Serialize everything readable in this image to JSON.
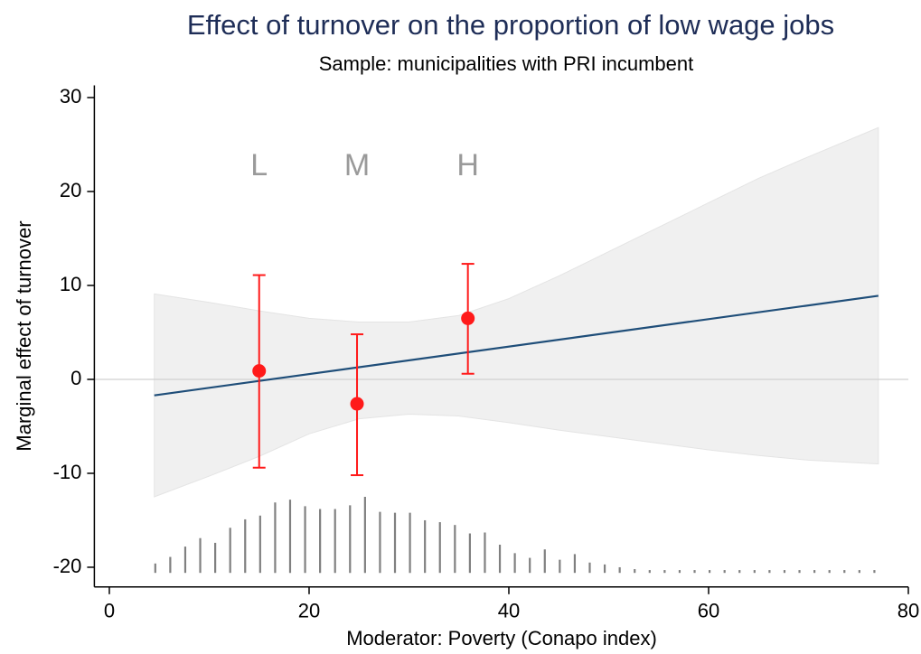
{
  "chart_data": {
    "type": "marginal-effect",
    "title": "Effect of turnover on the proportion of low wage jobs",
    "subtitle": "Sample: municipalities with PRI incumbent",
    "x_label": "Moderator: Poverty (Conapo index)",
    "y_label": "Marginal effect of turnover",
    "xlim": [
      -1.5,
      80
    ],
    "ylim": [
      -22.1,
      31.3
    ],
    "xticks": [
      0,
      20,
      40,
      60,
      80
    ],
    "yticks": [
      -20,
      -10,
      0,
      10,
      20,
      30
    ],
    "reference_line": 0,
    "line": {
      "color": "#1f4e79",
      "x": [
        4.5,
        77
      ],
      "values": [
        -1.7,
        8.9
      ]
    },
    "band": {
      "color": "#f0f0f0",
      "x": [
        4.5,
        10,
        15,
        20,
        25,
        30,
        35,
        40,
        45,
        50,
        55,
        60,
        65,
        70,
        77
      ],
      "upper": [
        9.1,
        8.2,
        7.3,
        6.5,
        6.1,
        6.1,
        6.8,
        8.6,
        11.0,
        13.6,
        16.2,
        18.8,
        21.4,
        23.7,
        26.8
      ],
      "lower": [
        -12.5,
        -10.3,
        -8.2,
        -5.8,
        -4.2,
        -3.7,
        -3.9,
        -4.6,
        -5.4,
        -6.1,
        -6.8,
        -7.5,
        -8.1,
        -8.6,
        -9.0
      ]
    },
    "points": {
      "color": "#ff1a1a",
      "labels": [
        "L",
        "M",
        "H"
      ],
      "label_y": 22.6,
      "x": [
        15,
        24.8,
        35.9
      ],
      "values": [
        0.9,
        -2.6,
        6.5
      ],
      "lower": [
        -9.4,
        -10.2,
        0.6
      ],
      "upper": [
        11.1,
        4.8,
        12.3
      ]
    },
    "spikes": {
      "color": "#808080",
      "base": -20.6,
      "x": [
        4.6,
        6.1,
        7.6,
        9.1,
        10.6,
        12.1,
        13.6,
        15.1,
        16.6,
        18.1,
        19.6,
        21.1,
        22.6,
        24.1,
        25.6,
        27.1,
        28.6,
        30.1,
        31.6,
        33.1,
        34.6,
        36.1,
        37.6,
        39.1,
        40.6,
        42.1,
        43.6,
        45.1,
        46.6,
        48.1,
        49.6,
        51.1,
        52.6,
        54.1,
        55.6,
        57.1,
        58.6,
        60.1,
        61.6,
        63.1,
        64.6,
        66.1,
        67.6,
        69.1,
        70.6,
        72.1,
        73.6,
        75.1,
        76.6
      ],
      "top": [
        -19.6,
        -18.9,
        -17.8,
        -16.9,
        -17.4,
        -15.8,
        -14.9,
        -14.5,
        -13.1,
        -12.8,
        -13.5,
        -13.8,
        -13.8,
        -13.4,
        -12.5,
        -14.1,
        -14.2,
        -14.2,
        -15.0,
        -15.2,
        -15.5,
        -16.4,
        -16.3,
        -17.6,
        -18.5,
        -19.0,
        -18.1,
        -19.2,
        -18.6,
        -19.5,
        -19.7,
        -20.0,
        -20.2,
        -20.3,
        -20.3,
        -20.3,
        -20.3,
        -20.3,
        -20.3,
        -20.3,
        -20.3,
        -20.3,
        -20.3,
        -20.3,
        -20.3,
        -20.3,
        -20.3,
        -20.3,
        -20.3
      ]
    }
  }
}
